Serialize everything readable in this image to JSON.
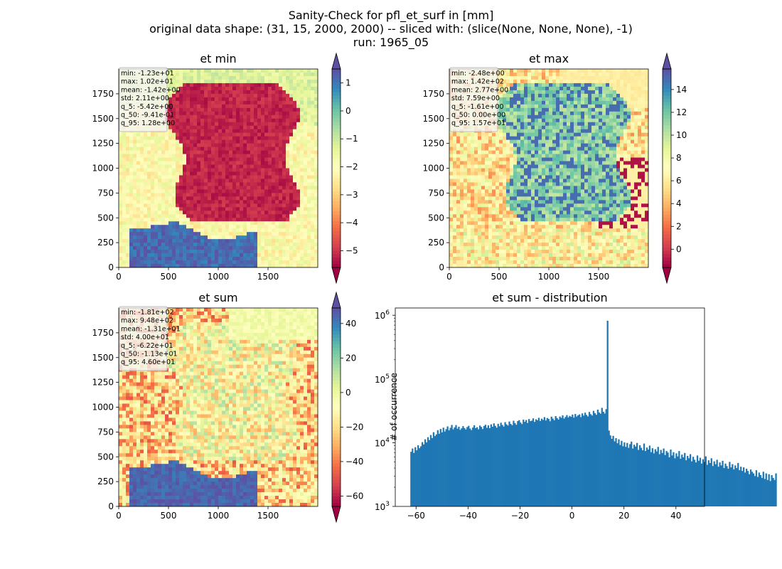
{
  "title_lines": [
    "Sanity-Check for pfl_et_surf in [mm]",
    "original data shape: (31, 15, 2000, 2000) -- sliced with: (slice(None, None, None), -1)",
    "run: 1965_05"
  ],
  "chart_data": [
    {
      "type": "heatmap",
      "title": "et min",
      "xlim": [
        0,
        2000
      ],
      "ylim": [
        0,
        2000
      ],
      "xticks": [
        "0",
        "500",
        "1000",
        "1500"
      ],
      "yticks": [
        "0",
        "250",
        "500",
        "750",
        "1000",
        "1250",
        "1500",
        "1750"
      ],
      "colormap": "Spectral",
      "colorbar": {
        "min": -5.6,
        "max": 1.5,
        "extend": "both",
        "ticks": [
          "1",
          "0",
          "−1",
          "−2",
          "−3",
          "−4",
          "−5"
        ]
      },
      "stats": [
        "min: -1.23e+01",
        "max: 1.02e+01",
        "mean: -1.42e+00",
        "std: 2.11e+00",
        "q_5: -5.42e+00",
        "q_50: -9.41e-01",
        "q_95: 1.28e+00"
      ]
    },
    {
      "type": "heatmap",
      "title": "et max",
      "xlim": [
        0,
        2000
      ],
      "ylim": [
        0,
        2000
      ],
      "xticks": [
        "0",
        "500",
        "1000",
        "1500"
      ],
      "yticks": [
        "0",
        "250",
        "500",
        "750",
        "1000",
        "1250",
        "1500",
        "1750"
      ],
      "colormap": "Spectral",
      "colorbar": {
        "min": -1.6,
        "max": 15.8,
        "extend": "both",
        "ticks": [
          "14",
          "12",
          "10",
          "8",
          "6",
          "4",
          "2",
          "0"
        ]
      },
      "stats": [
        "min: -2.48e+00",
        "max: 1.42e+02",
        "mean: 2.77e+00",
        "std: 7.59e+00",
        "q_5: -1.61e+00",
        "q_50: 0.00e+00",
        "q_95: 1.57e+01"
      ]
    },
    {
      "type": "heatmap",
      "title": "et sum",
      "xlim": [
        0,
        2000
      ],
      "ylim": [
        0,
        2000
      ],
      "xticks": [
        "0",
        "500",
        "1000",
        "1500"
      ],
      "yticks": [
        "0",
        "250",
        "500",
        "750",
        "1000",
        "1250",
        "1500",
        "1750"
      ],
      "colormap": "Spectral",
      "colorbar": {
        "min": -66,
        "max": 49,
        "extend": "both",
        "ticks": [
          "40",
          "20",
          "0",
          "−20",
          "−40",
          "−60"
        ]
      },
      "stats": [
        "min: -1.81e+02",
        "max: 9.48e+02",
        "mean: -1.31e+01",
        "std: 4.00e+01",
        "q_5: -6.22e+01",
        "q_50: -1.13e+01",
        "q_95: 4.60e+01"
      ]
    },
    {
      "type": "bar",
      "title": "et sum - distribution",
      "ylabel": "# of occurrence",
      "xlim": [
        -68,
        51
      ],
      "yscale": "log",
      "ylim": [
        1000,
        1300000
      ],
      "xticks": [
        "−60",
        "−40",
        "−20",
        "0",
        "20",
        "40"
      ],
      "ytick_labels": [
        "10^3",
        "10^4",
        "10^5",
        "10^6"
      ],
      "color": "#1f77b4",
      "bin_width": 0.54,
      "bin_start": -62.2,
      "counts": [
        7200,
        8100,
        6900,
        8500,
        7600,
        9100,
        8200,
        8800,
        10200,
        9400,
        11300,
        10100,
        12200,
        11000,
        13200,
        11800,
        14600,
        12700,
        13500,
        15700,
        13800,
        16400,
        14500,
        17200,
        15000,
        16300,
        18000,
        15600,
        17100,
        19000,
        16200,
        17400,
        18900,
        16600,
        17800,
        15900,
        16800,
        18200,
        17000,
        16100,
        17600,
        18400,
        16700,
        15800,
        17300,
        18800,
        16900,
        17500,
        16200,
        18600,
        17700,
        16400,
        18300,
        19100,
        17100,
        18700,
        16900,
        19400,
        17800,
        20100,
        18400,
        17200,
        19800,
        18100,
        20600,
        19000,
        17900,
        21000,
        19400,
        18600,
        21500,
        19700,
        18800,
        22100,
        20300,
        19100,
        21800,
        22600,
        20700,
        19600,
        23000,
        21300,
        22700,
        20400,
        23500,
        21800,
        22200,
        24100,
        21200,
        23300,
        22500,
        24600,
        21900,
        23800,
        22800,
        25200,
        22300,
        24400,
        23600,
        21700,
        25600,
        23900,
        22500,
        26100,
        24300,
        23000,
        25700,
        24600,
        26800,
        23900,
        25300,
        27100,
        24800,
        26300,
        25500,
        27600,
        24700,
        28200,
        25700,
        26900,
        27800,
        25200,
        28800,
        26600,
        29600,
        27300,
        25800,
        30400,
        28000,
        26700,
        31600,
        29100,
        27400,
        33000,
        29800,
        28500,
        35200,
        30600,
        28700,
        33600,
        820000,
        15500,
        13000,
        11500,
        12800,
        10500,
        11800,
        9800,
        11300,
        9200,
        10700,
        8800,
        10100,
        8600,
        9900,
        8300,
        9500,
        10400,
        8100,
        9300,
        8700,
        9900,
        7700,
        9100,
        8300,
        7600,
        9700,
        7400,
        8400,
        7800,
        9000,
        7100,
        8200,
        6800,
        7900,
        7300,
        8600,
        6600,
        7700,
        6900,
        8100,
        6400,
        7400,
        7000,
        5900,
        7800,
        6300,
        7100,
        5700,
        6800,
        6100,
        7400,
        5600,
        6500,
        5900,
        6900,
        5300,
        6200,
        5700,
        6600,
        5100,
        6000,
        5400,
        4900,
        6300,
        5200,
        5800,
        4700,
        5500,
        5000,
        6100,
        4500,
        5300,
        4800,
        5700,
        4300,
        5100,
        4600,
        5400,
        4200,
        4900,
        4400,
        5200,
        4000,
        4700,
        4300,
        3900,
        5000,
        4100,
        4600,
        3800,
        4400,
        4000,
        4800,
        3700,
        4200,
        3600,
        4100,
        3400,
        3900,
        3600,
        3200,
        3800,
        3500,
        3300,
        3000,
        3700,
        2900,
        3400,
        3100,
        2800,
        3500,
        2700,
        3300,
        2600,
        3200,
        2500,
        3100,
        2800,
        2600,
        3300
      ]
    }
  ]
}
